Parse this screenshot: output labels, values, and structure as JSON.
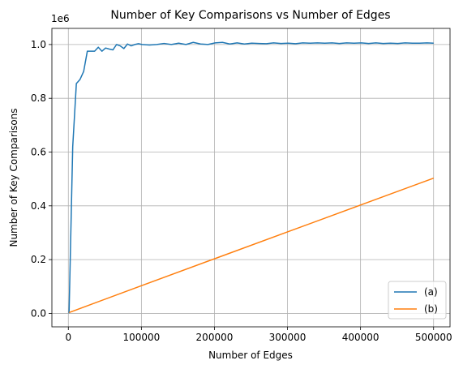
{
  "chart_data": {
    "type": "line",
    "title": "Number of Key Comparisons vs Number of Edges",
    "xlabel": "Number of Edges",
    "ylabel": "Number of Key Comparisons",
    "y_offset_label": "1e6",
    "xlim": [
      -22500,
      522500
    ],
    "ylim": [
      -0.05,
      1.06
    ],
    "y_scale_note": "values in units of 1e6",
    "xticks": [
      0,
      100000,
      200000,
      300000,
      400000,
      500000
    ],
    "xtick_labels": [
      "0",
      "100000",
      "200000",
      "300000",
      "400000",
      "500000"
    ],
    "yticks": [
      0.0,
      0.2,
      0.4,
      0.6,
      0.8,
      1.0
    ],
    "ytick_labels": [
      "0.0",
      "0.2",
      "0.4",
      "0.6",
      "0.8",
      "1.0"
    ],
    "grid": true,
    "legend_position": "lower right",
    "series": [
      {
        "name": "(a)",
        "color": "#1f77b4",
        "x": [
          1000,
          6000,
          11000,
          16000,
          21000,
          26000,
          31000,
          36000,
          41000,
          46000,
          51000,
          56000,
          61000,
          66000,
          71000,
          76000,
          81000,
          86000,
          91000,
          96000,
          101000,
          111000,
          121000,
          131000,
          141000,
          151000,
          161000,
          171000,
          181000,
          191000,
          201000,
          211000,
          221000,
          231000,
          241000,
          251000,
          261000,
          271000,
          281000,
          291000,
          301000,
          311000,
          321000,
          331000,
          341000,
          351000,
          361000,
          371000,
          381000,
          391000,
          401000,
          411000,
          421000,
          431000,
          441000,
          451000,
          461000,
          471000,
          481000,
          491000,
          500000
        ],
        "y": [
          0.0,
          0.62,
          0.855,
          0.87,
          0.9,
          0.975,
          0.975,
          0.975,
          0.99,
          0.975,
          0.987,
          0.983,
          0.98,
          1.0,
          0.995,
          0.985,
          1.002,
          0.995,
          1.0,
          1.003,
          1.0,
          0.998,
          1.0,
          1.004,
          1.0,
          1.005,
          1.0,
          1.008,
          1.002,
          1.0,
          1.006,
          1.008,
          1.002,
          1.006,
          1.002,
          1.005,
          1.004,
          1.003,
          1.006,
          1.004,
          1.005,
          1.003,
          1.006,
          1.005,
          1.006,
          1.005,
          1.006,
          1.004,
          1.006,
          1.005,
          1.006,
          1.004,
          1.006,
          1.004,
          1.005,
          1.004,
          1.006,
          1.005,
          1.005,
          1.006,
          1.005
        ]
      },
      {
        "name": "(b)",
        "color": "#ff7f0e",
        "x": [
          1000,
          100000,
          200000,
          300000,
          400000,
          500000
        ],
        "y": [
          0.003,
          0.103,
          0.203,
          0.303,
          0.403,
          0.503
        ]
      }
    ]
  }
}
